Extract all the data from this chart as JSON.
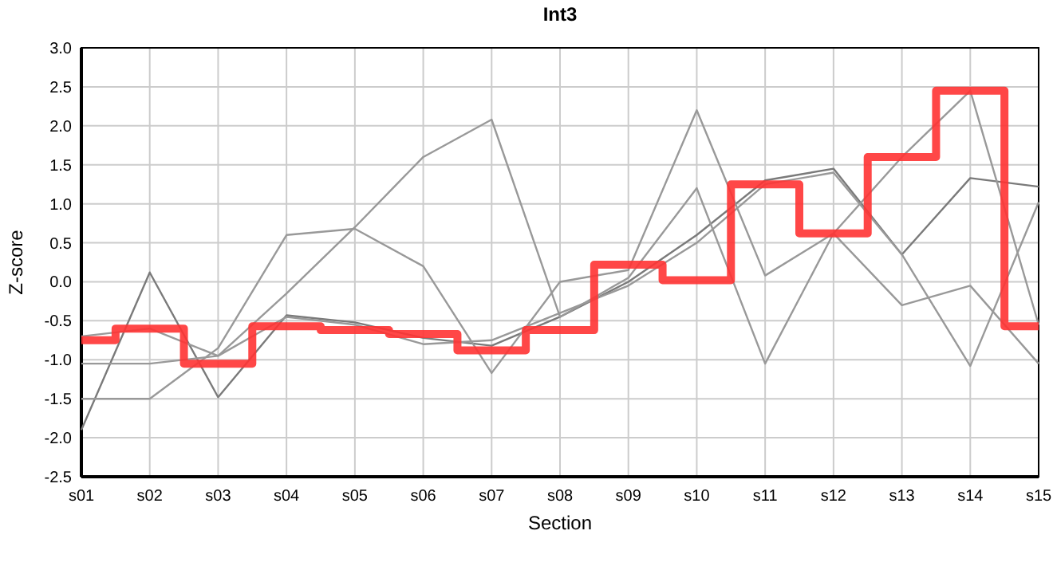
{
  "chart_data": {
    "type": "line",
    "title": "Int3",
    "xlabel": "Section",
    "ylabel": "Z-score",
    "categories": [
      "s01",
      "s02",
      "s03",
      "s04",
      "s05",
      "s06",
      "s07",
      "s08",
      "s09",
      "s10",
      "s11",
      "s12",
      "s13",
      "s14",
      "s15"
    ],
    "series": [
      {
        "color": "#7a7a7a",
        "values": [
          -1.9,
          0.12,
          -1.48,
          -0.43,
          -0.52,
          -0.72,
          -0.82,
          -0.45,
          0.0,
          0.6,
          1.3,
          1.45,
          0.35,
          1.33,
          1.22
        ]
      },
      {
        "color": "#999999",
        "values": [
          -1.5,
          -1.5,
          -0.85,
          0.6,
          0.68,
          0.2,
          -1.17,
          0.0,
          0.15,
          2.2,
          0.08,
          0.62,
          -0.3,
          -0.05,
          -1.05
        ]
      },
      {
        "color": "#999999",
        "values": [
          -1.05,
          -1.05,
          -0.95,
          -0.15,
          0.7,
          1.6,
          2.08,
          -0.45,
          0.05,
          1.2,
          -1.05,
          0.62,
          1.6,
          2.45,
          -0.55
        ]
      },
      {
        "color": "#999999",
        "values": [
          -0.7,
          -0.6,
          -0.95,
          -0.45,
          -0.55,
          -0.8,
          -0.75,
          -0.4,
          -0.05,
          0.5,
          1.25,
          1.4,
          0.35,
          -1.08,
          1.02
        ]
      },
      {
        "type": "step",
        "color": "#ff3333",
        "values": [
          -0.75,
          -0.6,
          -1.05,
          -0.57,
          -0.62,
          -0.67,
          -0.88,
          -0.62,
          0.22,
          0.02,
          1.25,
          0.62,
          1.6,
          2.45,
          -0.57
        ]
      }
    ],
    "ylim": [
      -2.5,
      3.0
    ],
    "yticks": [
      {
        "value": -2.5,
        "label": "-2.5"
      },
      {
        "value": -2,
        "label": "-2.0"
      },
      {
        "value": -1.5,
        "label": "-1.5"
      },
      {
        "value": -1,
        "label": "-1.0"
      },
      {
        "value": -0.5,
        "label": "-0.5"
      },
      {
        "value": 0,
        "label": "0.0"
      },
      {
        "value": 0.5,
        "label": "0.5"
      },
      {
        "value": 1,
        "label": "1.0"
      },
      {
        "value": 1.5,
        "label": "1.5"
      },
      {
        "value": 2,
        "label": "2.0"
      },
      {
        "value": 2.5,
        "label": "2.5"
      },
      {
        "value": 3,
        "label": "3.0"
      }
    ],
    "grid": true
  }
}
